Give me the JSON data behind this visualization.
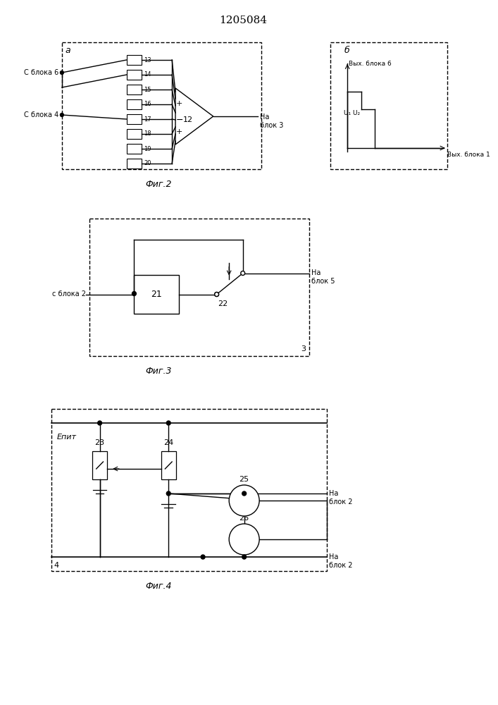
{
  "title": "1205084",
  "fig2_caption": "Фиг.2",
  "fig3_caption": "Фиг.3",
  "fig4_caption": "Фиг.4",
  "fig2_label_a": "а",
  "fig2_label_b": "б",
  "fig2_label_c_blok6": "С блока 6",
  "fig2_label_c_blok4": "С блока 4",
  "fig2_label_na_blok3": "На\nблок 3",
  "fig2_label_vyx_blok6": "Вых. блока 6",
  "fig2_label_vyx_blok1": "Вых. блока 1",
  "fig2_label_u1u2": "U₁ U₂",
  "fig2_label_12": "12",
  "fig2_resistor_labels": [
    "13",
    "14",
    "15",
    "16",
    "17",
    "18",
    "19",
    "20"
  ],
  "fig3_label_c_blok2": "с блока 2",
  "fig3_label_na_blok5": "На\nблок 5",
  "fig3_label_21": "21",
  "fig3_label_22": "22",
  "fig3_label_3": "3",
  "fig4_label_epit": "Епит",
  "fig4_label_23": "23",
  "fig4_label_24": "24",
  "fig4_label_25": "25",
  "fig4_label_26": "26",
  "fig4_label_4": "4",
  "fig4_label_na_blok2_top": "На\nблок 2",
  "fig4_label_na_blok2_bot": "На\nблок 2",
  "bg_color": "#ffffff",
  "line_color": "#000000",
  "dash_pattern": [
    4,
    3
  ]
}
